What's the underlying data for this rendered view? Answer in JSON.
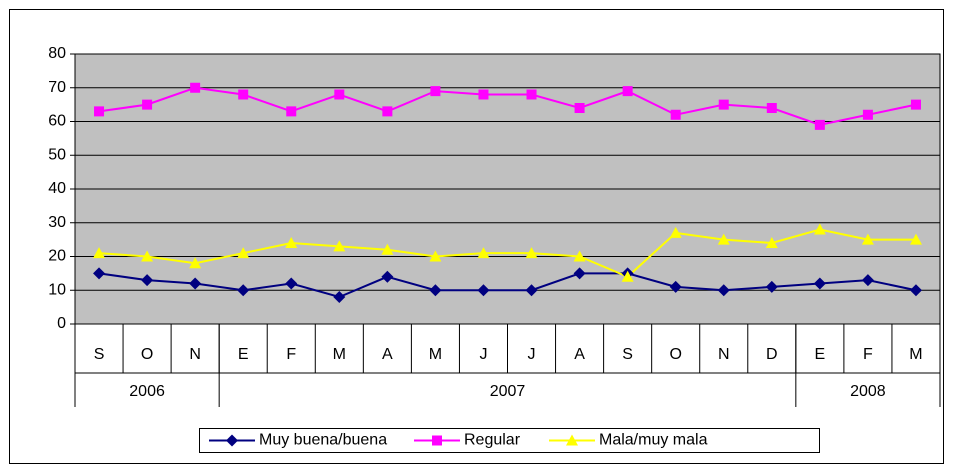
{
  "chart_data": {
    "type": "line",
    "categories": [
      "S",
      "O",
      "N",
      "E",
      "F",
      "M",
      "A",
      "M",
      "J",
      "J",
      "A",
      "S",
      "O",
      "N",
      "D",
      "E",
      "F",
      "M"
    ],
    "year_groups": [
      {
        "label": "2006",
        "span": 3
      },
      {
        "label": "2007",
        "span": 12
      },
      {
        "label": "2008",
        "span": 3
      }
    ],
    "series": [
      {
        "name": "Muy buena/buena",
        "color": "#000080",
        "marker": "diamond",
        "values": [
          15,
          13,
          12,
          10,
          12,
          8,
          14,
          10,
          10,
          10,
          15,
          15,
          11,
          10,
          11,
          12,
          13,
          10
        ]
      },
      {
        "name": "Regular",
        "color": "#ff00ff",
        "marker": "square",
        "values": [
          63,
          65,
          70,
          68,
          63,
          68,
          63,
          69,
          68,
          68,
          64,
          69,
          62,
          65,
          64,
          59,
          62,
          65
        ]
      },
      {
        "name": "Mala/muy mala",
        "color": "#ffff00",
        "marker": "triangle",
        "values": [
          21,
          20,
          18,
          21,
          24,
          23,
          22,
          20,
          21,
          21,
          20,
          14,
          27,
          25,
          24,
          28,
          25,
          25
        ]
      }
    ],
    "ylim": [
      0,
      80
    ],
    "yticks": [
      0,
      10,
      20,
      30,
      40,
      50,
      60,
      70,
      80
    ],
    "grid": true,
    "plot_background": "#c0c0c0",
    "legend": "bottom"
  }
}
